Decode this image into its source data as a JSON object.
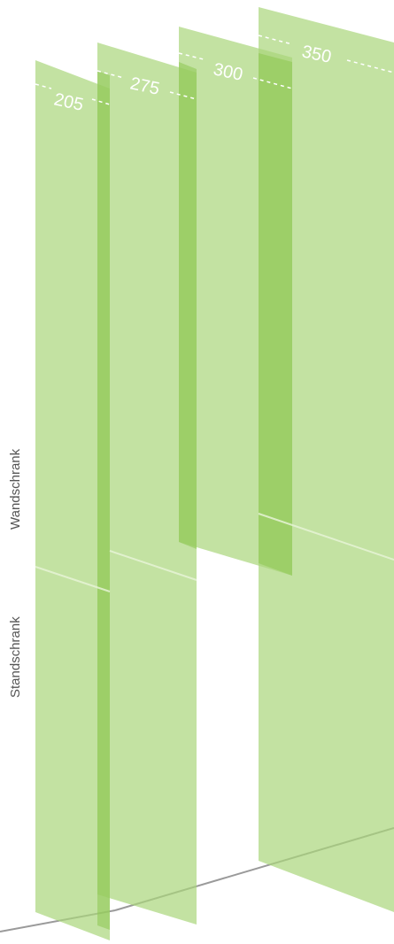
{
  "panels": [
    {
      "id": "panel-205",
      "depth_label": "205"
    },
    {
      "id": "panel-275",
      "depth_label": "275"
    },
    {
      "id": "panel-300",
      "depth_label": "300"
    },
    {
      "id": "panel-350",
      "depth_label": "350"
    }
  ],
  "labels": {
    "wall_cabinet": "Wandschrank",
    "floor_cabinet": "Standschrank"
  },
  "colors": {
    "panel_fill": "#a9d57a",
    "panel_overlap": "#8cc650",
    "divider_line": "#e6f3d6",
    "floor_line": "#9a9a9a",
    "label_text": "#555555"
  }
}
